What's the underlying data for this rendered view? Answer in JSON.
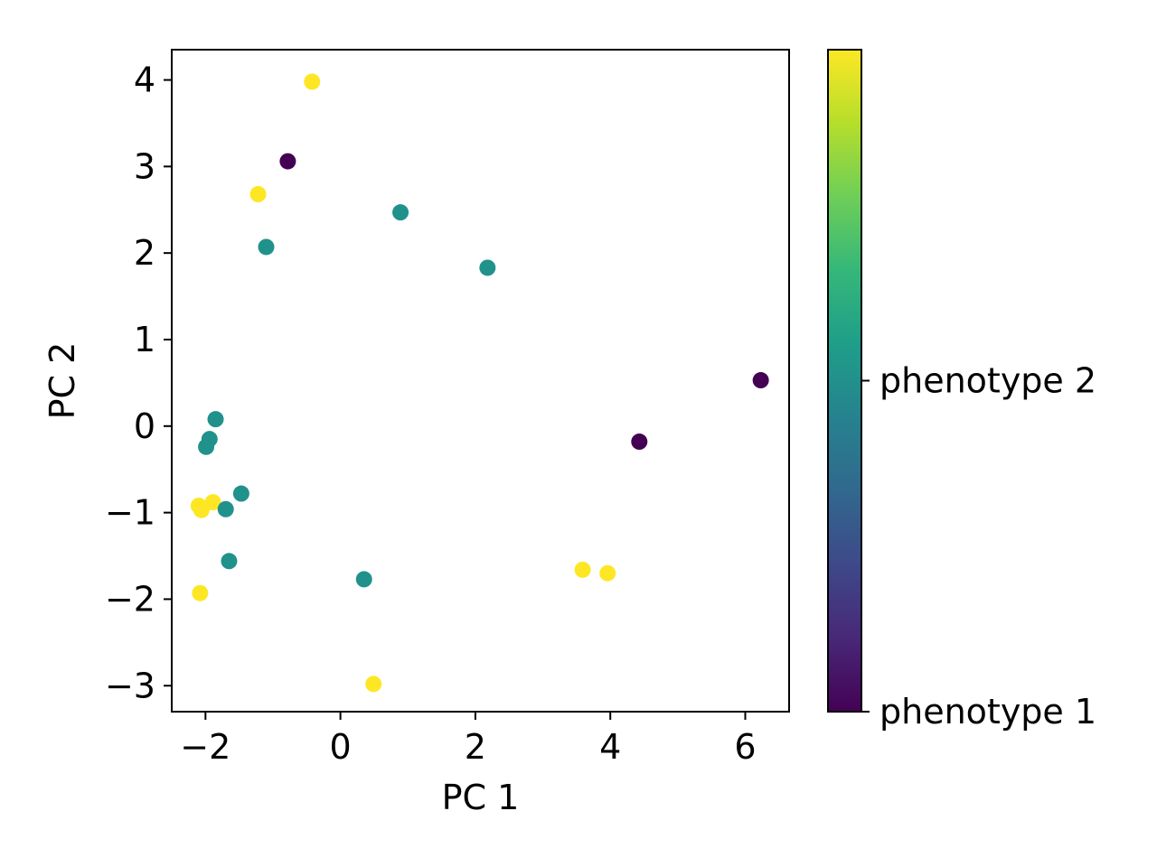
{
  "chart_data": {
    "type": "scatter",
    "title": "",
    "xlabel": "PC 1",
    "ylabel": "PC 2",
    "xlim": [
      -2.5,
      6.65
    ],
    "ylim": [
      -3.3,
      4.35
    ],
    "grid": false,
    "xticks": [
      -2,
      0,
      2,
      4,
      6
    ],
    "yticks": [
      -3,
      -2,
      -1,
      0,
      1,
      2,
      3,
      4
    ],
    "xtick_labels": [
      "−2",
      "0",
      "2",
      "4",
      "6"
    ],
    "ytick_labels": [
      "−3",
      "−2",
      "−1",
      "0",
      "1",
      "2",
      "3",
      "4"
    ],
    "colorbar": {
      "colormap": "viridis",
      "range": [
        0,
        2
      ],
      "ticks": [
        0,
        1
      ],
      "tick_labels": [
        "phenotype 1",
        "phenotype 2"
      ]
    },
    "points": [
      {
        "x": -0.42,
        "y": 3.98,
        "c": 2
      },
      {
        "x": -0.78,
        "y": 3.06,
        "c": 0
      },
      {
        "x": -1.22,
        "y": 2.68,
        "c": 2
      },
      {
        "x": 0.89,
        "y": 2.47,
        "c": 1
      },
      {
        "x": -1.1,
        "y": 2.07,
        "c": 1
      },
      {
        "x": 2.18,
        "y": 1.83,
        "c": 1
      },
      {
        "x": 6.23,
        "y": 0.53,
        "c": 0
      },
      {
        "x": 4.43,
        "y": -0.18,
        "c": 0
      },
      {
        "x": -1.85,
        "y": 0.08,
        "c": 1
      },
      {
        "x": -1.94,
        "y": -0.15,
        "c": 1
      },
      {
        "x": -1.99,
        "y": -0.24,
        "c": 1
      },
      {
        "x": -1.47,
        "y": -0.78,
        "c": 1
      },
      {
        "x": -1.89,
        "y": -0.88,
        "c": 2
      },
      {
        "x": -2.1,
        "y": -0.92,
        "c": 2
      },
      {
        "x": -2.06,
        "y": -0.97,
        "c": 2
      },
      {
        "x": -1.7,
        "y": -0.96,
        "c": 1
      },
      {
        "x": -1.65,
        "y": -1.56,
        "c": 1
      },
      {
        "x": 0.35,
        "y": -1.77,
        "c": 1
      },
      {
        "x": 3.59,
        "y": -1.66,
        "c": 2
      },
      {
        "x": 3.96,
        "y": -1.7,
        "c": 2
      },
      {
        "x": -2.08,
        "y": -1.93,
        "c": 2
      },
      {
        "x": 0.49,
        "y": -2.98,
        "c": 2
      }
    ]
  },
  "colors": {
    "c0": "#440154",
    "c1": "#21918c",
    "c2": "#fde725",
    "viridis_stops": [
      "#440154",
      "#482878",
      "#3e4989",
      "#31688e",
      "#26828e",
      "#1f9e89",
      "#35b779",
      "#6ece58",
      "#b5de2b",
      "#fde725"
    ]
  }
}
